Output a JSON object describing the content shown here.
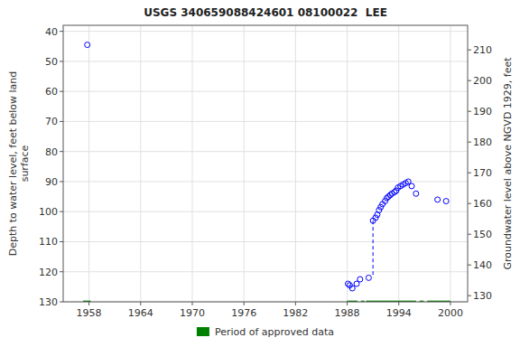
{
  "chart_data": {
    "type": "scatter",
    "title": "USGS 340659088424601 08100022  LEE",
    "ylabel": "Depth to water level, feet below land\nsurface",
    "y2label": "Groundwater level above NGVD 1929, feet",
    "xlim": [
      1955,
      2002
    ],
    "xticks": [
      1958,
      1964,
      1970,
      1976,
      1982,
      1988,
      1994,
      2000
    ],
    "ylim": [
      130,
      38
    ],
    "yticks": [
      40,
      50,
      60,
      70,
      80,
      90,
      100,
      110,
      120,
      130
    ],
    "y2lim": [
      128,
      218
    ],
    "y2ticks": [
      130,
      140,
      150,
      160,
      170,
      180,
      190,
      200,
      210
    ],
    "grid": true,
    "legend": "bottom",
    "series": [
      {
        "type": "scatter",
        "color": "#0000ff",
        "marker": "circle",
        "x": [
          1957.8,
          1988.1,
          1988.3,
          1988.6,
          1989.1,
          1989.5,
          1990.5,
          1991.0,
          1991.3,
          1991.5,
          1991.7,
          1991.9,
          1992.1,
          1992.4,
          1992.6,
          1992.8,
          1993.0,
          1993.2,
          1993.5,
          1993.7,
          1993.9,
          1994.2,
          1994.5,
          1994.8,
          1995.1,
          1995.5,
          1996.0,
          1998.5,
          1999.5
        ],
        "values": [
          44.5,
          124.0,
          124.5,
          125.5,
          124.0,
          122.5,
          122.0,
          103.0,
          102.0,
          101.0,
          99.5,
          98.5,
          97.5,
          96.5,
          95.5,
          95.0,
          94.5,
          94.0,
          93.5,
          93.0,
          92.0,
          91.5,
          91.0,
          90.5,
          90.0,
          91.5,
          94.0,
          96.0,
          96.5
        ]
      },
      {
        "type": "line",
        "color": "#0000ff",
        "line_style": "dashed",
        "x": [
          1991.0,
          1991.0
        ],
        "values": [
          103.0,
          122.0
        ]
      },
      {
        "type": "span",
        "name": "Period of approved data",
        "color": "#008000",
        "x_start": [
          1957.3,
          1988.0,
          1989.6,
          1990.2,
          1996.4,
          1997.3
        ],
        "x_end": [
          1958.2,
          1989.2,
          1990.0,
          1996.0,
          1996.9,
          2000.0
        ],
        "y_start": 129.6,
        "y_end": 130.0
      }
    ]
  }
}
